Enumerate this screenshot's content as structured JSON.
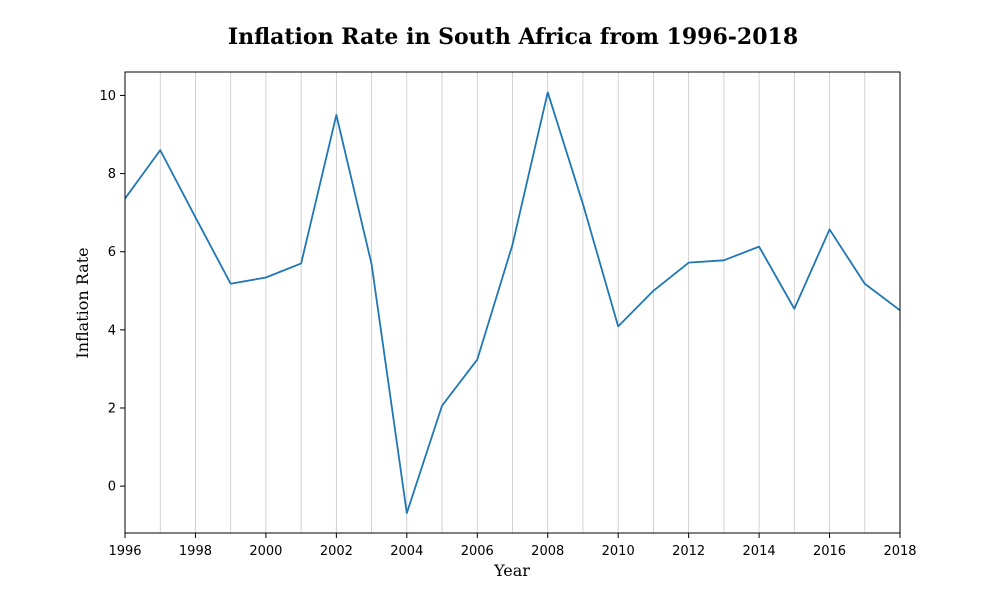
{
  "chart_data": {
    "type": "line",
    "title": "Inflation Rate in South Africa from 1996-2018",
    "xlabel": "Year",
    "ylabel": "Inflation Rate",
    "x": [
      1996,
      1997,
      1998,
      1999,
      2000,
      2001,
      2002,
      2003,
      2004,
      2005,
      2006,
      2007,
      2008,
      2009,
      2010,
      2011,
      2012,
      2013,
      2014,
      2015,
      2016,
      2017,
      2018
    ],
    "series": [
      {
        "values": [
          7.36,
          8.6,
          6.88,
          5.18,
          5.34,
          5.7,
          9.5,
          5.68,
          -0.69,
          2.06,
          3.24,
          6.18,
          10.08,
          7.22,
          4.09,
          5.0,
          5.72,
          5.78,
          6.13,
          4.54,
          6.57,
          5.18,
          4.5
        ],
        "color": "#1f77b4"
      }
    ],
    "xlim": [
      1996,
      2018
    ],
    "ylim": [
      -1.2,
      10.6
    ],
    "xticks": [
      "1996",
      "1998",
      "2000",
      "2002",
      "2004",
      "2006",
      "2008",
      "2010",
      "2012",
      "2014",
      "2016",
      "2018"
    ],
    "yticks": [
      "0",
      "2",
      "4",
      "6",
      "8",
      "10"
    ],
    "grid": "vertical, every year",
    "grid_color": "#c8c8c8"
  }
}
